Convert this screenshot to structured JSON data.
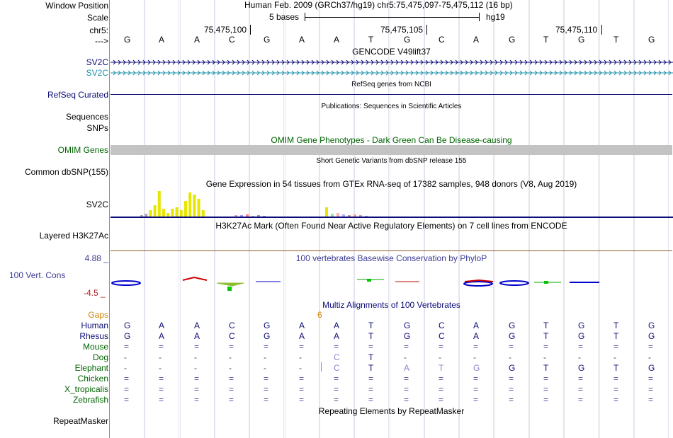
{
  "header": {
    "window_position_label": "Window Position",
    "position_title": "Human Feb. 2009 (GRCh37/hg19)   chr5:75,475,097-75,475,112 (16 bp)",
    "scale_label": "Scale",
    "scale_text": "5 bases",
    "scale_assembly": "hg19",
    "chrom_label": "chr5:",
    "coords": [
      "75,475,100",
      "75,475,105",
      "75,475,110"
    ],
    "strand_label": "--->"
  },
  "bases": [
    "G",
    "A",
    "A",
    "C",
    "G",
    "A",
    "A",
    "T",
    "G",
    "C",
    "A",
    "G",
    "T",
    "G",
    "T",
    "G"
  ],
  "tracks": {
    "gencode": {
      "title": "GENCODE V49lift37",
      "items": [
        "SV2C",
        "SV2C"
      ],
      "colors": [
        "#0c0c78",
        "#1e90aa"
      ]
    },
    "refseq": {
      "label": "RefSeq Curated",
      "title": "RefSeq genes from NCBI",
      "color": "#0c0c78"
    },
    "publications": {
      "title": "Publications: Sequences in Scientific Articles",
      "labels": [
        "Sequences",
        "SNPs"
      ]
    },
    "omim": {
      "title": "OMIM Gene Phenotypes - Dark Green Can Be Disease-causing",
      "label": "OMIM Genes",
      "color": "#006400"
    },
    "dbsnp": {
      "title": "Short Genetic Variants from dbSNP release 155",
      "label": "Common dbSNP(155)"
    },
    "gtex": {
      "title": "Gene Expression in 54 tissues from GTEx RNA-seq of 17382 samples, 948 donors (V8, Aug 2019)",
      "label": "SV2C"
    },
    "h3k27ac": {
      "title": "H3K27Ac Mark (Often Found Near Active Regulatory Elements) on 7 cell lines from ENCODE",
      "label": "Layered H3K27Ac"
    },
    "phylop": {
      "title": "100 vertebrates Basewise Conservation by PhyloP",
      "label": "100 Vert. Cons",
      "max": "4.88 _",
      "min": "-4.5 _",
      "color": "#3c3c96"
    },
    "multiz": {
      "title": "Multiz Alignments of 100 Vertebrates",
      "gaps_label": "Gaps",
      "gap_value": "6",
      "species": [
        {
          "name": "Human",
          "color": "#0c0c78",
          "seq": [
            "G",
            "A",
            "A",
            "C",
            "G",
            "A",
            "A",
            "T",
            "G",
            "C",
            "A",
            "G",
            "T",
            "G",
            "T",
            "G"
          ]
        },
        {
          "name": "Rhesus",
          "color": "#0c0c78",
          "seq": [
            "G",
            "A",
            "A",
            "C",
            "G",
            "A",
            "A",
            "T",
            "G",
            "C",
            "A",
            "G",
            "T",
            "G",
            "T",
            "G"
          ]
        },
        {
          "name": "Mouse",
          "color": "#006400",
          "seq": [
            "=",
            "=",
            "=",
            "=",
            "=",
            "=",
            "=",
            "=",
            "=",
            "=",
            "=",
            "=",
            "=",
            "=",
            "=",
            "="
          ]
        },
        {
          "name": "Dog",
          "color": "#006400",
          "seq": [
            "-",
            "-",
            "-",
            "-",
            "-",
            "-",
            "C",
            "T",
            "-",
            "-",
            "-",
            "-",
            "-",
            "-",
            "-",
            "-"
          ]
        },
        {
          "name": "Elephant",
          "color": "#006400",
          "seq": [
            "-",
            "-",
            "-",
            "-",
            "-",
            "-",
            "C",
            "T",
            "A",
            "T",
            "G",
            "G",
            "T",
            "G",
            "T",
            "G"
          ]
        },
        {
          "name": "Chicken",
          "color": "#006400",
          "seq": [
            "=",
            "=",
            "=",
            "=",
            "=",
            "=",
            "=",
            "=",
            "=",
            "=",
            "=",
            "=",
            "=",
            "=",
            "=",
            "="
          ]
        },
        {
          "name": "X_tropicalis",
          "color": "#006400",
          "seq": [
            "=",
            "=",
            "=",
            "=",
            "=",
            "=",
            "=",
            "=",
            "=",
            "=",
            "=",
            "=",
            "=",
            "=",
            "=",
            "="
          ]
        },
        {
          "name": "Zebrafish",
          "color": "#006400",
          "seq": [
            "=",
            "=",
            "=",
            "=",
            "=",
            "=",
            "=",
            "=",
            "=",
            "=",
            "=",
            "=",
            "=",
            "=",
            "=",
            "="
          ]
        }
      ]
    },
    "repeatmasker": {
      "title": "Repeating Elements by RepeatMasker",
      "label": "RepeatMasker"
    }
  },
  "gtex_bars": [
    0.05,
    0.1,
    0.25,
    0.45,
    1.0,
    0.3,
    0.15,
    0.3,
    0.35,
    0.25,
    0.6,
    0.95,
    0.85,
    0.7,
    0.25
  ],
  "gtex_small": [
    0.05,
    0.05,
    0.08,
    0.04,
    0.05,
    0.03,
    0.35,
    0.12,
    0.15,
    0.08,
    0.05,
    0.07,
    0.05,
    0.04
  ]
}
